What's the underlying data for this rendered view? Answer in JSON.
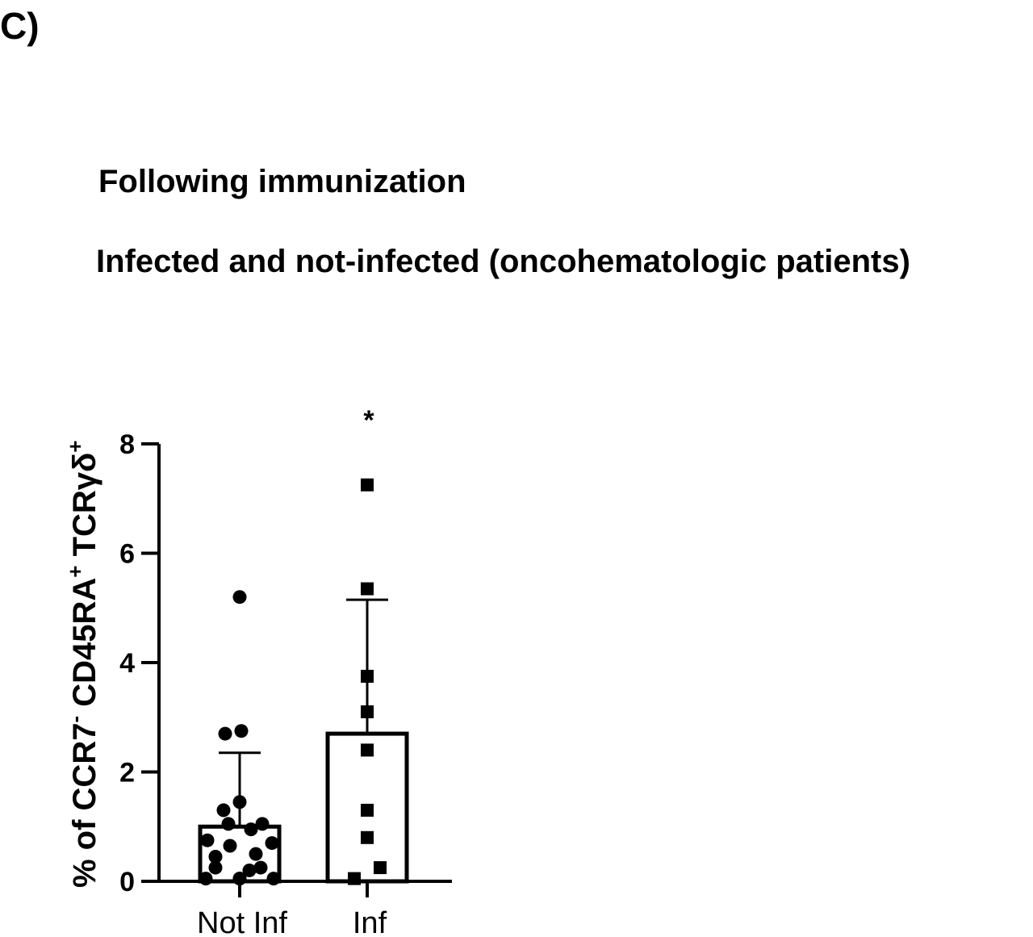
{
  "panel_label": "C)",
  "title_line1": "Following immunization",
  "title_line2": "Infected and not-infected  (oncohematologic patients)",
  "chart_data": {
    "type": "bar",
    "title": "Following immunization",
    "subtitle": "Infected and not-infected  (oncohematologic patients)",
    "ylabel": "% of CCR7⁻ CD45RA⁺ TCRγδ⁺",
    "ylabel_parts": {
      "p1": "% of CCR7",
      "p1_sup": "-",
      "p2": " CD45RA",
      "p2_sup": "+",
      "p3": " TCRγδ",
      "p3_sup": "+"
    },
    "ylim": [
      0,
      8
    ],
    "yticks": [
      0,
      2,
      4,
      6,
      8
    ],
    "grid": false,
    "categories": [
      "Not Inf",
      "Inf"
    ],
    "values": [
      1.0,
      2.7
    ],
    "error_upper": [
      2.35,
      5.15
    ],
    "points": [
      [
        5.2,
        2.75,
        2.7,
        1.45,
        1.3,
        1.05,
        1.05,
        0.95,
        0.75,
        0.7,
        0.65,
        0.5,
        0.45,
        0.25,
        0.25,
        0.2,
        0.05,
        0.05,
        0.05,
        0.05
      ],
      [
        7.25,
        5.35,
        3.75,
        3.1,
        2.4,
        1.3,
        0.8,
        0.25,
        0.05
      ]
    ],
    "markers": [
      "circle",
      "square"
    ],
    "annotations": [
      {
        "category": "Inf",
        "text": "*"
      }
    ]
  }
}
